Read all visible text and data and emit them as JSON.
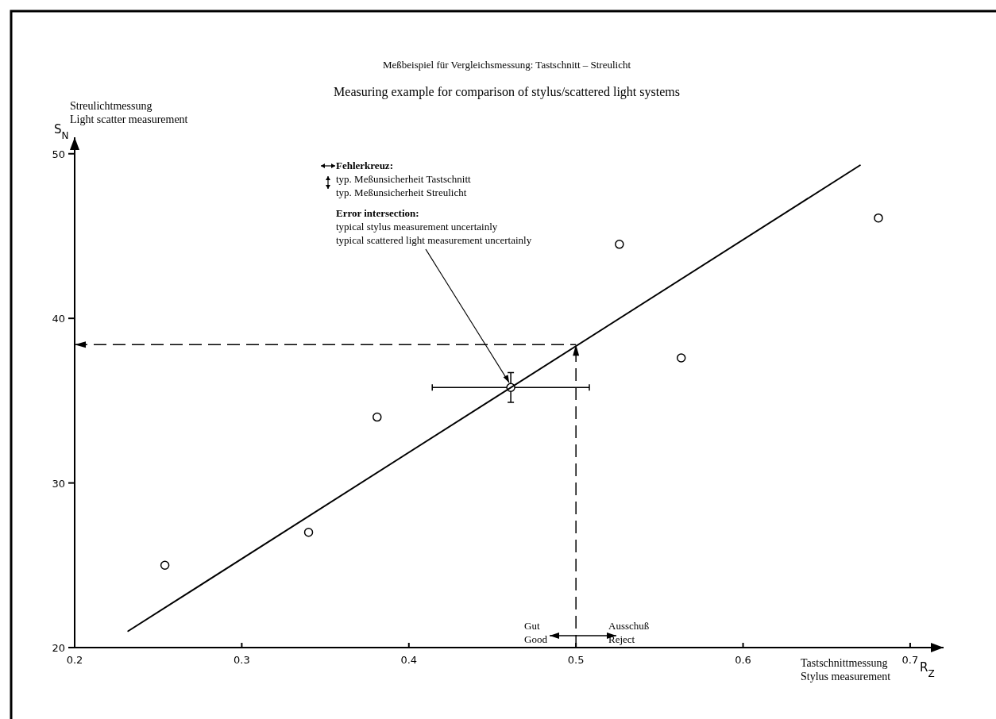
{
  "chart_data": {
    "type": "scatter",
    "title": "Meßbeispiel für Vergleichsmessung: Tastschnitt – Streulicht",
    "subtitle": "Measuring example for comparison of stylus/scattered light systems",
    "xlabel": "Tastschnittmessung\nStylus measurement",
    "ylabel": "Streulichtmessung\nLight scatter measurement",
    "xlim": [
      0.2,
      0.72
    ],
    "ylim": [
      20,
      51
    ],
    "xticks": [
      0.2,
      0.3,
      0.4,
      0.5,
      0.6,
      0.7
    ],
    "yticks": [
      20,
      30,
      40,
      50
    ],
    "series": [
      {
        "color": "#000000",
        "marker": "circle",
        "x": [
          0.254,
          0.34,
          0.381,
          0.526,
          0.563,
          0.681
        ],
        "values": [
          25.0,
          27.0,
          34.0,
          44.5,
          37.6,
          46.1
        ]
      },
      {
        "color": "#000000",
        "marker": "circle",
        "x": [
          0.461
        ],
        "values": [
          35.8
        ],
        "errors": [
          0.9
        ],
        "xerrors": [
          0.047
        ]
      },
      {
        "type": "line",
        "color": "#000000",
        "line_style": "solid",
        "x": [
          0.232,
          0.67
        ],
        "values": [
          21.0,
          49.3
        ]
      }
    ],
    "ref_lines": [
      {
        "axis": "x",
        "value": 0.5,
        "line_style": "dashed",
        "color": "#000000"
      },
      {
        "axis": "y",
        "value": 38.4,
        "line_style": "dashed",
        "color": "#000000"
      }
    ],
    "annotations": [
      "Fehlerkreuz:",
      "typ. Meßunsicherheit Tastschnitt",
      "typ. Meßunsicherheit Streulicht",
      "Error intersection:",
      "typical stylus measurement uncertainly",
      {
        "text": "typical scattered light measurement uncertainly",
        "x": 0.461,
        "y": 35.8
      },
      "Gut",
      "Good",
      "Ausschuß",
      "Reject",
      "S$_{N}$",
      "R$_{Z}$"
    ]
  }
}
